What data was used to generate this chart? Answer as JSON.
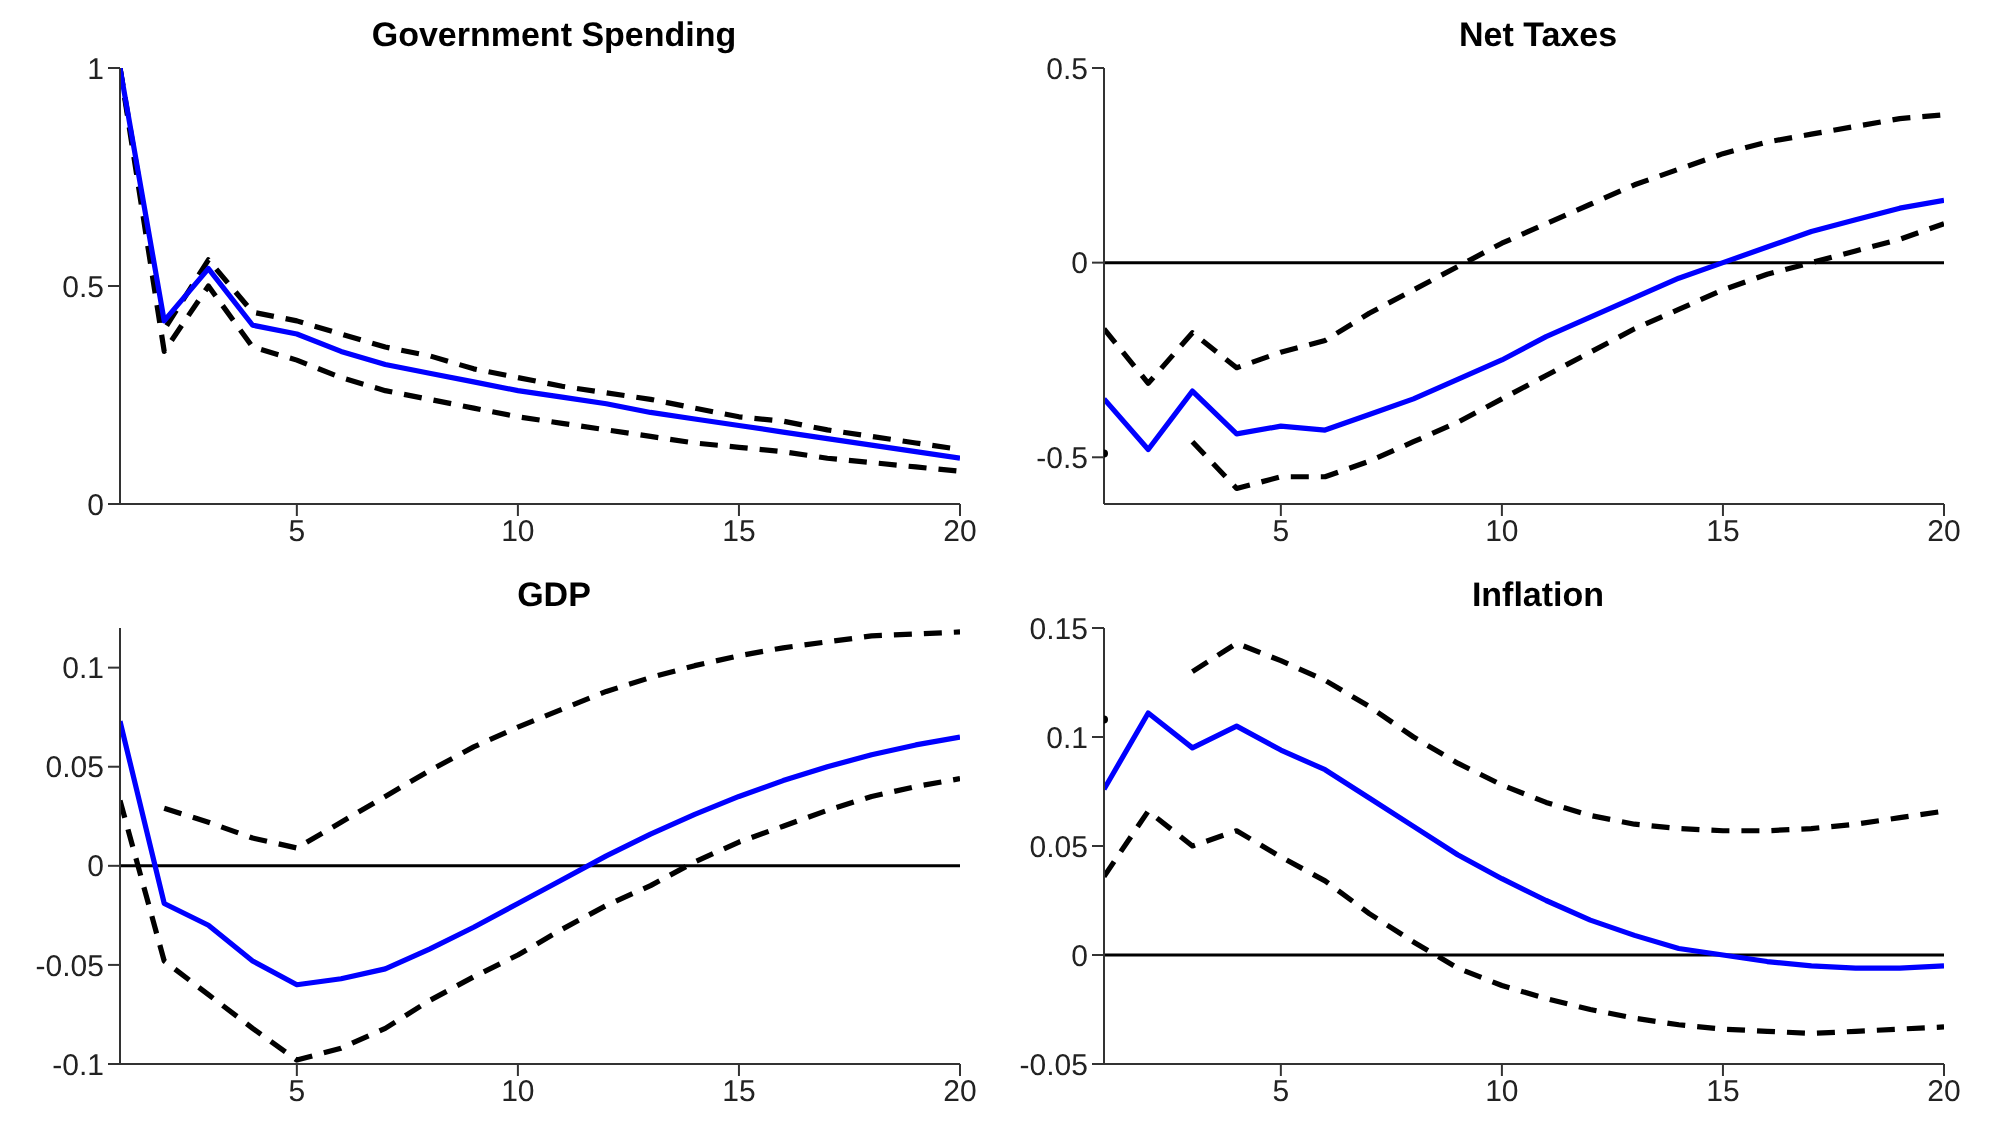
{
  "chart_data": [
    {
      "type": "line",
      "title": "Government Spending",
      "x": [
        1,
        2,
        3,
        4,
        5,
        6,
        7,
        8,
        9,
        10,
        11,
        12,
        13,
        14,
        15,
        16,
        17,
        18,
        19,
        20
      ],
      "xlim": [
        1,
        20
      ],
      "xticks": [
        5,
        10,
        15,
        20
      ],
      "ylim": [
        0,
        1
      ],
      "yticks": [
        0,
        0.5,
        1
      ],
      "series": [
        {
          "color": "#000000",
          "line_style": "dashed",
          "values": [
            1.0,
            0.4,
            0.56,
            0.44,
            0.42,
            0.39,
            0.36,
            0.34,
            0.31,
            0.29,
            0.27,
            0.255,
            0.24,
            0.22,
            0.2,
            0.19,
            0.17,
            0.155,
            0.14,
            0.125
          ]
        },
        {
          "color": "#000000",
          "line_style": "dashed",
          "values": [
            1.0,
            0.35,
            0.5,
            0.36,
            0.33,
            0.29,
            0.26,
            0.24,
            0.22,
            0.2,
            0.185,
            0.17,
            0.155,
            0.14,
            0.13,
            0.12,
            0.105,
            0.095,
            0.085,
            0.075
          ]
        },
        {
          "color": "#0000ff",
          "line_style": "solid",
          "values": [
            1.0,
            0.42,
            0.54,
            0.41,
            0.39,
            0.35,
            0.32,
            0.3,
            0.28,
            0.26,
            0.245,
            0.23,
            0.21,
            0.195,
            0.18,
            0.165,
            0.15,
            0.135,
            0.12,
            0.105
          ]
        }
      ]
    },
    {
      "type": "line",
      "title": "Net Taxes",
      "x": [
        1,
        2,
        3,
        4,
        5,
        6,
        7,
        8,
        9,
        10,
        11,
        12,
        13,
        14,
        15,
        16,
        17,
        18,
        19,
        20
      ],
      "xlim": [
        1,
        20
      ],
      "xticks": [
        5,
        10,
        15,
        20
      ],
      "ylim": [
        -0.62,
        0.5
      ],
      "yticks": [
        -0.5,
        0,
        0.5
      ],
      "ref_lines": [
        {
          "axis": "y",
          "value": 0,
          "color": "#000000"
        }
      ],
      "series": [
        {
          "color": "#000000",
          "line_style": "dashed",
          "values": [
            -0.17,
            -0.31,
            -0.18,
            -0.27,
            -0.23,
            -0.2,
            -0.13,
            -0.07,
            -0.01,
            0.05,
            0.1,
            0.15,
            0.2,
            0.24,
            0.28,
            0.31,
            0.33,
            0.35,
            0.37,
            0.38
          ]
        },
        {
          "color": "#000000",
          "line_style": "dashed",
          "values": [
            -0.49,
            null,
            -0.46,
            -0.58,
            -0.55,
            -0.55,
            -0.51,
            -0.46,
            -0.41,
            -0.35,
            -0.29,
            -0.23,
            -0.17,
            -0.12,
            -0.07,
            -0.03,
            0.0,
            0.03,
            0.06,
            0.1
          ]
        },
        {
          "color": "#0000ff",
          "line_style": "solid",
          "values": [
            -0.35,
            -0.48,
            -0.33,
            -0.44,
            -0.42,
            -0.43,
            -0.39,
            -0.35,
            -0.3,
            -0.25,
            -0.19,
            -0.14,
            -0.09,
            -0.04,
            0.0,
            0.04,
            0.08,
            0.11,
            0.14,
            0.16
          ]
        }
      ]
    },
    {
      "type": "line",
      "title": "GDP",
      "x": [
        1,
        2,
        3,
        4,
        5,
        6,
        7,
        8,
        9,
        10,
        11,
        12,
        13,
        14,
        15,
        16,
        17,
        18,
        19,
        20
      ],
      "xlim": [
        1,
        20
      ],
      "xticks": [
        5,
        10,
        15,
        20
      ],
      "ylim": [
        -0.1,
        0.12
      ],
      "yticks": [
        -0.1,
        -0.05,
        0,
        0.05,
        0.1
      ],
      "ref_lines": [
        {
          "axis": "y",
          "value": 0,
          "color": "#000000"
        }
      ],
      "series": [
        {
          "color": "#000000",
          "line_style": "dashed",
          "values": [
            null,
            0.029,
            0.022,
            0.014,
            0.009,
            0.022,
            0.035,
            0.048,
            0.06,
            0.07,
            0.079,
            0.088,
            0.095,
            0.101,
            0.106,
            0.11,
            0.113,
            0.116,
            0.117,
            0.118
          ]
        },
        {
          "color": "#000000",
          "line_style": "dashed",
          "values": [
            0.033,
            -0.048,
            -0.065,
            -0.082,
            -0.098,
            -0.092,
            -0.082,
            -0.068,
            -0.056,
            -0.045,
            -0.032,
            -0.02,
            -0.01,
            0.002,
            0.012,
            0.02,
            0.028,
            0.035,
            0.04,
            0.044
          ]
        },
        {
          "color": "#0000ff",
          "line_style": "solid",
          "values": [
            0.073,
            -0.019,
            -0.03,
            -0.048,
            -0.06,
            -0.057,
            -0.052,
            -0.042,
            -0.031,
            -0.019,
            -0.007,
            0.005,
            0.016,
            0.026,
            0.035,
            0.043,
            0.05,
            0.056,
            0.061,
            0.065
          ]
        }
      ]
    },
    {
      "type": "line",
      "title": "Inflation",
      "x": [
        1,
        2,
        3,
        4,
        5,
        6,
        7,
        8,
        9,
        10,
        11,
        12,
        13,
        14,
        15,
        16,
        17,
        18,
        19,
        20
      ],
      "xlim": [
        1,
        20
      ],
      "xticks": [
        5,
        10,
        15,
        20
      ],
      "ylim": [
        -0.05,
        0.15
      ],
      "yticks": [
        -0.05,
        0,
        0.05,
        0.1,
        0.15
      ],
      "ref_lines": [
        {
          "axis": "y",
          "value": 0,
          "color": "#000000"
        }
      ],
      "series": [
        {
          "color": "#000000",
          "line_style": "dashed",
          "values": [
            0.108,
            null,
            0.13,
            0.143,
            0.135,
            0.126,
            0.114,
            0.1,
            0.088,
            0.078,
            0.07,
            0.064,
            0.06,
            0.058,
            0.057,
            0.057,
            0.058,
            0.06,
            0.063,
            0.066
          ]
        },
        {
          "color": "#000000",
          "line_style": "dashed",
          "values": [
            0.036,
            0.066,
            0.05,
            0.057,
            0.045,
            0.034,
            0.019,
            0.006,
            -0.006,
            -0.014,
            -0.02,
            -0.025,
            -0.029,
            -0.032,
            -0.034,
            -0.035,
            -0.036,
            -0.035,
            -0.034,
            -0.033
          ]
        },
        {
          "color": "#0000ff",
          "line_style": "solid",
          "values": [
            0.076,
            0.111,
            0.095,
            0.105,
            0.094,
            0.085,
            0.072,
            0.059,
            0.046,
            0.035,
            0.025,
            0.016,
            0.009,
            0.003,
            0.0,
            -0.003,
            -0.005,
            -0.006,
            -0.006,
            -0.005
          ]
        }
      ]
    }
  ]
}
